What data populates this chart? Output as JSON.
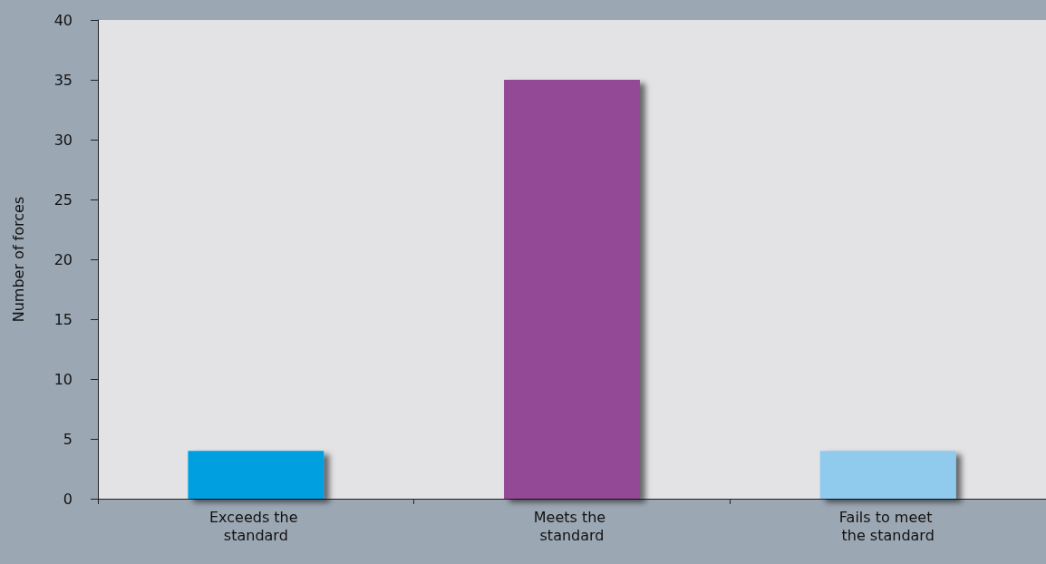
{
  "chart_data": {
    "type": "bar",
    "ylabel": "Number of forces",
    "categories": [
      "Exceeds the standard",
      "Meets the standard",
      "Fails to meet the standard"
    ],
    "values": [
      4,
      35,
      4
    ],
    "colors": [
      "#00a0e0",
      "#934896",
      "#90cbed"
    ],
    "ylim": [
      0,
      40
    ],
    "yticks": [
      0,
      5,
      10,
      15,
      20,
      25,
      30,
      35,
      40
    ],
    "grid": false
  }
}
